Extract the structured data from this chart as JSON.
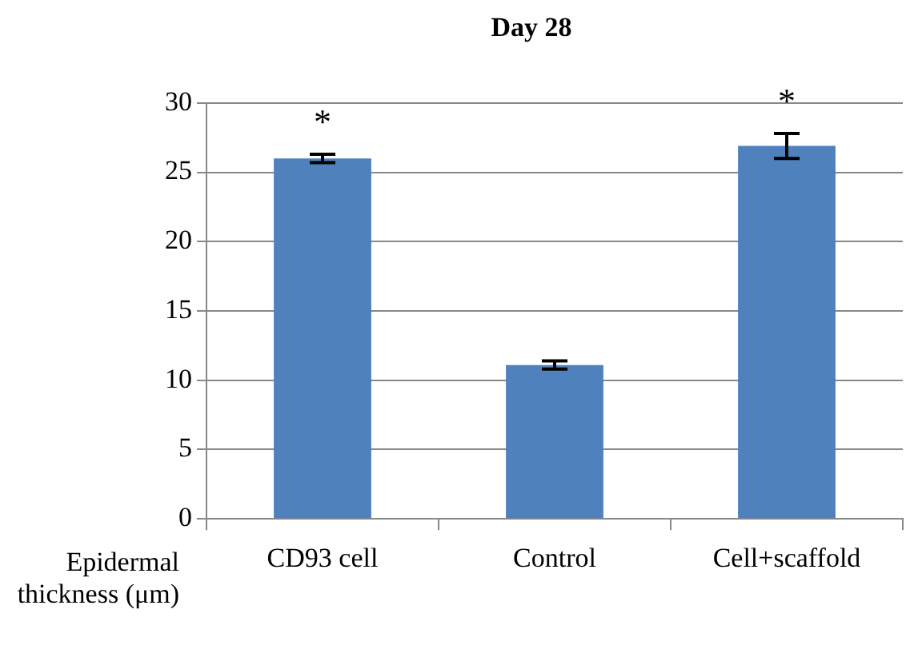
{
  "chart_data": {
    "type": "bar",
    "title": "Day 28",
    "ylabel": "Epidermal thickness (μm)",
    "categories": [
      "CD93 cell",
      "Control",
      "Cell+scaffold"
    ],
    "values": [
      26.0,
      11.1,
      26.9
    ],
    "errors": [
      0.3,
      0.3,
      0.9
    ],
    "color": "#4f81bd",
    "ylim": [
      0,
      30
    ],
    "yticks": [
      0,
      5,
      10,
      15,
      20,
      25,
      30
    ],
    "grid": "y",
    "legend": false,
    "annotations": [
      {
        "text": "*",
        "x": "CD93 cell",
        "y": 26.3
      },
      {
        "text": "*",
        "x": "Cell+scaffold",
        "y": 27.8
      }
    ]
  }
}
